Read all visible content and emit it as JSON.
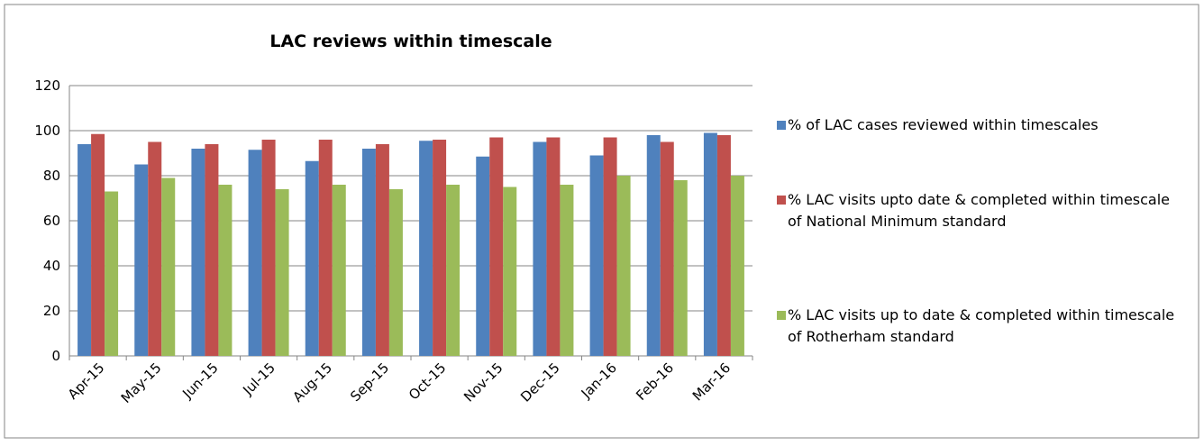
{
  "chart_data": {
    "type": "bar",
    "title": "LAC reviews within timescale",
    "categories": [
      "Apr-15",
      "May-15",
      "Jun-15",
      "Jul-15",
      "Aug-15",
      "Sep-15",
      "Oct-15",
      "Nov-15",
      "Dec-15",
      "Jan-16",
      "Feb-16",
      "Mar-16"
    ],
    "series": [
      {
        "name": "% of LAC cases reviewed within timescales",
        "color": "#4f81bd",
        "values": [
          94,
          85,
          92,
          91.5,
          86.5,
          92,
          95.5,
          88.5,
          95,
          89,
          98,
          99
        ]
      },
      {
        "name": "% LAC visits upto date & completed within timescale of National Minimum standard",
        "color": "#c0504d",
        "values": [
          98.5,
          95,
          94,
          96,
          96,
          94,
          96,
          97,
          97,
          97,
          95,
          98
        ]
      },
      {
        "name": "% LAC visits up to date & completed within timescale of Rotherham standard",
        "color": "#9bbb59",
        "values": [
          73,
          79,
          76,
          74,
          76,
          74,
          76,
          75,
          76,
          80,
          78,
          80
        ]
      }
    ],
    "ylim": [
      0,
      120
    ],
    "yticks": [
      0,
      20,
      40,
      60,
      80,
      100,
      120
    ],
    "grid": true,
    "legend": "right"
  }
}
